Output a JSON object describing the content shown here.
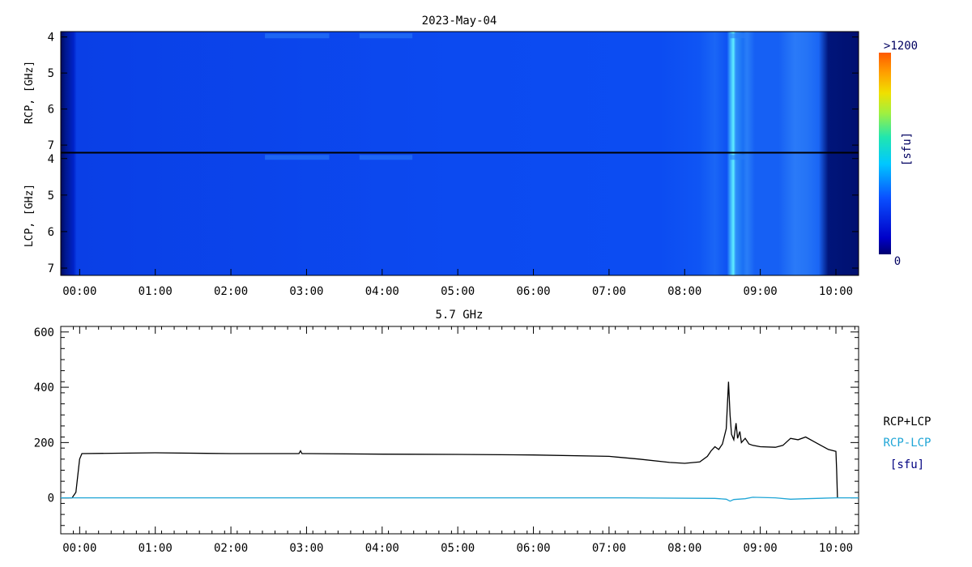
{
  "chart_data": [
    {
      "type": "heatmap",
      "title": "2023-May-04",
      "panels": [
        {
          "name": "RCP",
          "ylabel": "RCP, [GHz]"
        },
        {
          "name": "LCP",
          "ylabel": "LCP, [GHz]"
        }
      ],
      "y_ticks": [
        "4",
        "5",
        "6",
        "7"
      ],
      "ylim": [
        3.85,
        7.2
      ],
      "x_ticks": [
        "00:00",
        "01:00",
        "02:00",
        "03:00",
        "04:00",
        "05:00",
        "06:00",
        "07:00",
        "08:00",
        "09:00",
        "10:00"
      ],
      "xlim_hours": [
        -0.25,
        10.3
      ],
      "colorbar": {
        "max_label": ">1200",
        "min_label": "0",
        "unit_label": "[sfu]"
      }
    },
    {
      "type": "line",
      "title": "5.7 GHz",
      "x_ticks": [
        "00:00",
        "01:00",
        "02:00",
        "03:00",
        "04:00",
        "05:00",
        "06:00",
        "07:00",
        "08:00",
        "09:00",
        "10:00"
      ],
      "xlim_hours": [
        -0.25,
        10.3
      ],
      "y_ticks": [
        "600",
        "400",
        "200",
        "0"
      ],
      "ylim": [
        -130,
        620
      ],
      "legend": [
        "RCP+LCP",
        "RCP-LCP",
        "[sfu]"
      ],
      "series": [
        {
          "name": "RCP+LCP",
          "color": "#000000",
          "x": [
            -0.25,
            -0.1,
            -0.05,
            0.0,
            0.03,
            1.0,
            2.0,
            2.9,
            2.92,
            2.94,
            3.0,
            4.0,
            5.0,
            6.0,
            7.0,
            7.4,
            7.8,
            8.0,
            8.2,
            8.3,
            8.35,
            8.4,
            8.45,
            8.5,
            8.55,
            8.58,
            8.6,
            8.62,
            8.65,
            8.68,
            8.7,
            8.73,
            8.75,
            8.8,
            8.85,
            8.9,
            9.0,
            9.2,
            9.3,
            9.4,
            9.5,
            9.6,
            9.7,
            9.8,
            9.9,
            10.0,
            10.01,
            10.02
          ],
          "values": [
            0,
            0,
            20,
            140,
            160,
            163,
            160,
            160,
            170,
            160,
            160,
            158,
            157,
            155,
            150,
            140,
            128,
            125,
            130,
            150,
            170,
            185,
            175,
            195,
            250,
            420,
            300,
            230,
            210,
            270,
            215,
            240,
            200,
            215,
            195,
            190,
            185,
            183,
            190,
            215,
            210,
            220,
            205,
            190,
            175,
            168,
            100,
            0
          ]
        },
        {
          "name": "RCP-LCP",
          "color": "#1ea5d6",
          "x": [
            -0.25,
            7.2,
            8.4,
            8.55,
            8.6,
            8.65,
            8.8,
            8.9,
            9.2,
            9.4,
            9.6,
            10.0,
            10.3
          ],
          "values": [
            0,
            0,
            -2,
            -5,
            -12,
            -6,
            -3,
            2,
            0,
            -5,
            -3,
            0,
            0
          ]
        }
      ]
    }
  ]
}
